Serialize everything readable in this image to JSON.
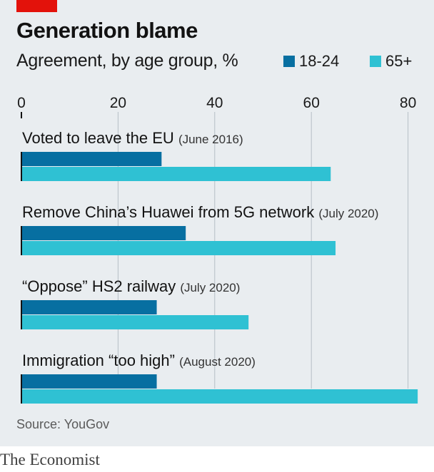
{
  "title": "Generation blame",
  "subtitle": "Agreement, by age group, %",
  "legend": [
    {
      "label": "18-24",
      "color": "#076fa1"
    },
    {
      "label": "65+",
      "color": "#2fc1d3"
    }
  ],
  "source": "Source: YouGov",
  "brand": "The Economist",
  "chart_data": {
    "type": "bar",
    "orientation": "horizontal",
    "xlim": [
      0,
      82
    ],
    "xticks": [
      "0",
      "20",
      "40",
      "60",
      "80"
    ],
    "grid": true,
    "categories": [
      {
        "main": "Voted to leave the EU",
        "date": "(June 2016)"
      },
      {
        "main": "Remove China’s Huawei from 5G network",
        "date": "(July 2020)"
      },
      {
        "main": "“Oppose” HS2 railway",
        "date": "(July 2020)"
      },
      {
        "main": "Immigration “too high”",
        "date": "(August 2020)"
      }
    ],
    "series": [
      {
        "name": "18-24",
        "color": "#076fa1",
        "values": [
          29,
          34,
          28,
          28
        ]
      },
      {
        "name": "65+",
        "color": "#2fc1d3",
        "values": [
          64,
          65,
          47,
          82
        ]
      }
    ]
  }
}
